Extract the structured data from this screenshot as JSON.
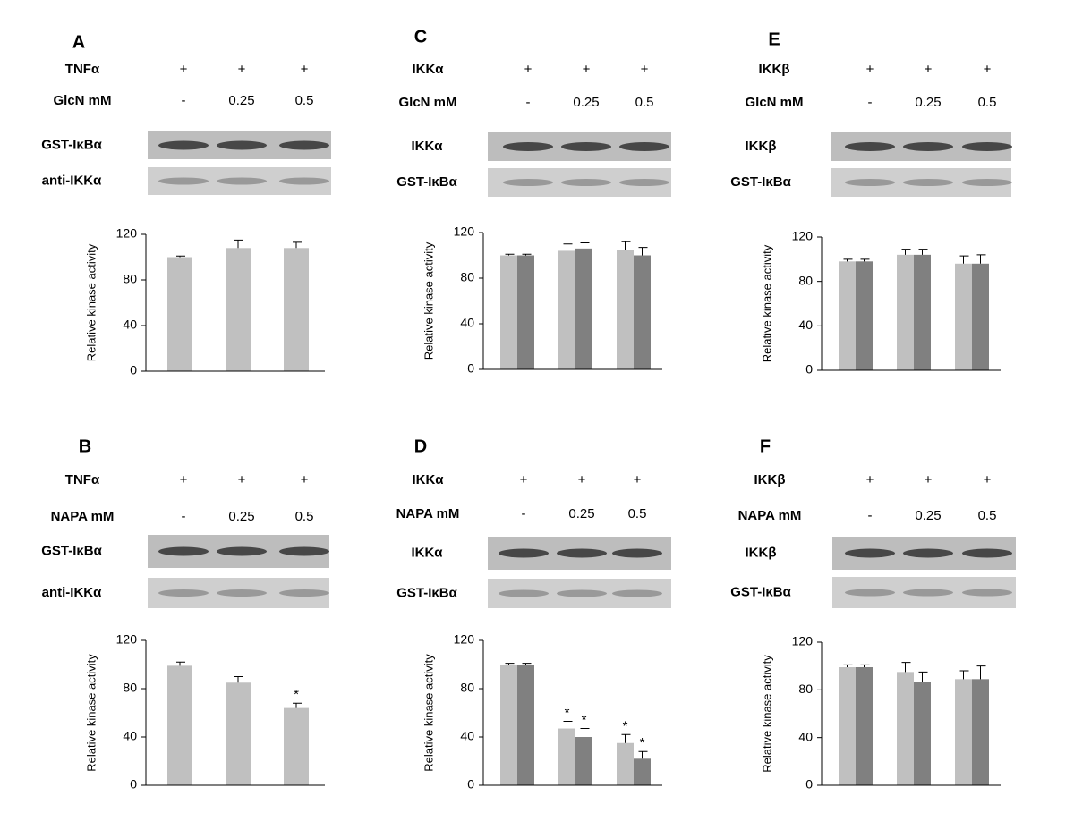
{
  "panels": [
    {
      "label": "A",
      "rows": [
        {
          "name": "TNFα",
          "cells": [
            "+",
            "+",
            "+"
          ]
        },
        {
          "name": "GlcN mM",
          "cells": [
            "-",
            "0.25",
            "0.5"
          ]
        }
      ],
      "blots": [
        "GST-IκBα",
        "anti-IKKα"
      ]
    },
    {
      "label": "C",
      "rows": [
        {
          "name": "IKKα",
          "cells": [
            "+",
            "+",
            "+"
          ]
        },
        {
          "name": "GlcN mM",
          "cells": [
            "-",
            "0.25",
            "0.5"
          ]
        }
      ],
      "blots": [
        "IKKα",
        "GST-IκBα"
      ]
    },
    {
      "label": "E",
      "rows": [
        {
          "name": "IKKβ",
          "cells": [
            "+",
            "+",
            "+"
          ]
        },
        {
          "name": "GlcN mM",
          "cells": [
            "-",
            "0.25",
            "0.5"
          ]
        }
      ],
      "blots": [
        "IKKβ",
        "GST-IκBα"
      ]
    },
    {
      "label": "B",
      "rows": [
        {
          "name": "TNFα",
          "cells": [
            "+",
            "+",
            "+"
          ]
        },
        {
          "name": "NAPA mM",
          "cells": [
            "-",
            "0.25",
            "0.5"
          ]
        }
      ],
      "blots": [
        "GST-IκBα",
        "anti-IKKα"
      ]
    },
    {
      "label": "D",
      "rows": [
        {
          "name": "IKKα",
          "cells": [
            "+",
            "+",
            "+"
          ]
        },
        {
          "name": "NAPA mM",
          "cells": [
            "-",
            "0.25",
            "0.5"
          ]
        }
      ],
      "blots": [
        "IKKα",
        "GST-IκBα"
      ]
    },
    {
      "label": "F",
      "rows": [
        {
          "name": "IKKβ",
          "cells": [
            "+",
            "+",
            "+"
          ]
        },
        {
          "name": "NAPA mM",
          "cells": [
            "-",
            "0.25",
            "0.5"
          ]
        }
      ],
      "blots": [
        "IKKβ",
        "GST-IκBα"
      ]
    }
  ],
  "chart_data": [
    {
      "type": "bar",
      "y_label": "Relative kinase activity",
      "categories": [
        null,
        null,
        null
      ],
      "series": [
        {
          "color": "#c0c0c0",
          "values": [
            100,
            108,
            108
          ],
          "errors": [
            1,
            7,
            5
          ]
        }
      ],
      "ylim": [
        0,
        120
      ],
      "yticks": [
        0,
        40,
        80,
        120
      ]
    },
    {
      "type": "bar",
      "y_label": "Relative kinase activity",
      "categories": [
        null,
        null,
        null
      ],
      "series": [
        {
          "color": "#c0c0c0",
          "values": [
            100,
            104,
            105
          ],
          "errors": [
            1,
            6,
            7
          ]
        },
        {
          "color": "#808080",
          "values": [
            100,
            106,
            100
          ],
          "errors": [
            1,
            5,
            7
          ]
        }
      ],
      "ylim": [
        0,
        120
      ],
      "yticks": [
        0,
        40,
        80,
        120
      ]
    },
    {
      "type": "bar",
      "y_label": "Relative kinase activity",
      "categories": [
        null,
        null,
        null
      ],
      "series": [
        {
          "color": "#c0c0c0",
          "values": [
            98,
            104,
            96
          ],
          "errors": [
            2,
            5,
            7
          ]
        },
        {
          "color": "#808080",
          "values": [
            98,
            104,
            96
          ],
          "errors": [
            2,
            5,
            8
          ]
        }
      ],
      "ylim": [
        0,
        120
      ],
      "yticks": [
        0,
        40,
        80,
        120
      ]
    },
    {
      "type": "bar",
      "y_label": "Relative kinase activity",
      "categories": [
        null,
        null,
        null
      ],
      "series": [
        {
          "color": "#c0c0c0",
          "values": [
            99,
            85,
            64
          ],
          "errors": [
            3,
            5,
            4
          ],
          "significance": [
            null,
            null,
            "*"
          ]
        }
      ],
      "ylim": [
        0,
        120
      ],
      "yticks": [
        0,
        40,
        80,
        120
      ]
    },
    {
      "type": "bar",
      "y_label": "Relative kinase activity",
      "categories": [
        null,
        null,
        null
      ],
      "series": [
        {
          "color": "#c0c0c0",
          "values": [
            100,
            47,
            35
          ],
          "errors": [
            1,
            6,
            7
          ],
          "significance": [
            null,
            "*",
            "*"
          ]
        },
        {
          "color": "#808080",
          "values": [
            100,
            40,
            22
          ],
          "errors": [
            1,
            7,
            6
          ],
          "significance": [
            null,
            "*",
            "*"
          ]
        }
      ],
      "ylim": [
        0,
        120
      ],
      "yticks": [
        0,
        40,
        80,
        120
      ]
    },
    {
      "type": "bar",
      "y_label": "Relative kinase activity",
      "categories": [
        null,
        null,
        null
      ],
      "series": [
        {
          "color": "#c0c0c0",
          "values": [
            99,
            95,
            89
          ],
          "errors": [
            2,
            8,
            7
          ]
        },
        {
          "color": "#808080",
          "values": [
            99,
            87,
            89
          ],
          "errors": [
            2,
            8,
            11
          ]
        }
      ],
      "ylim": [
        0,
        120
      ],
      "yticks": [
        0,
        40,
        80,
        120
      ]
    }
  ]
}
